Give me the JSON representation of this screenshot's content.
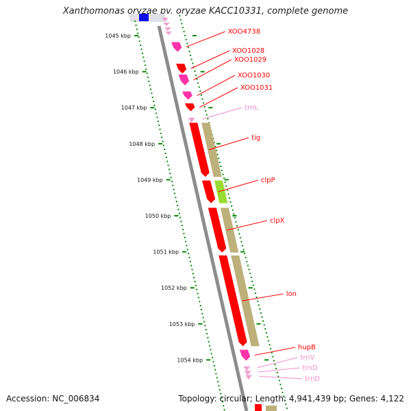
{
  "title": "Xanthomonas oryzae pv. oryzae KACC10331, complete genome",
  "footer": {
    "accession": "Accession: NC_006834",
    "topology": "Topology: circular; Length: 4,941,439 bp; Genes: 4,122"
  },
  "colors": {
    "gene_red": "#ff0000",
    "gene_magenta": "#ff33aa",
    "khaki": "#bdb07a",
    "green": "#99dd33",
    "trna_pink": "#f0a0d0",
    "label_red": "#ff0000",
    "label_pink": "#f08cc8",
    "tick_green": "#008800"
  },
  "scale_ticks": [
    {
      "label": "1045 kbp",
      "pos": 1045
    },
    {
      "label": "1046 kbp",
      "pos": 1046
    },
    {
      "label": "1047 kbp",
      "pos": 1047
    },
    {
      "label": "1048 kbp",
      "pos": 1048
    },
    {
      "label": "1049 kbp",
      "pos": 1049
    },
    {
      "label": "1050 kbp",
      "pos": 1050
    },
    {
      "label": "1051 kbp",
      "pos": 1051
    },
    {
      "label": "1052 kbp",
      "pos": 1052
    },
    {
      "label": "1053 kbp",
      "pos": 1053
    },
    {
      "label": "1054 kbp",
      "pos": 1054
    }
  ],
  "genes": [
    {
      "label": "XOO4738",
      "start": 1045.18,
      "end": 1045.45,
      "type": "cds"
    },
    {
      "label": "XOO1028",
      "start": 1045.78,
      "end": 1046.05,
      "type": "cds"
    },
    {
      "label": "XOO1029",
      "start": 1046.08,
      "end": 1046.38,
      "type": "cds"
    },
    {
      "label": "XOO1030",
      "start": 1046.55,
      "end": 1046.78,
      "type": "cds"
    },
    {
      "label": "XOO1031",
      "start": 1046.88,
      "end": 1047.1,
      "type": "cds"
    },
    {
      "label": "trnL",
      "start": 1047.28,
      "end": 1047.36,
      "type": "trna"
    },
    {
      "label": "tig",
      "start": 1047.42,
      "end": 1048.92,
      "type": "cds"
    },
    {
      "label": "clpP",
      "start": 1049.02,
      "end": 1049.65,
      "type": "cds"
    },
    {
      "label": "clpX",
      "start": 1049.78,
      "end": 1051.02,
      "type": "cds"
    },
    {
      "label": "lon",
      "start": 1051.1,
      "end": 1053.62,
      "type": "cds"
    },
    {
      "label": "hupB",
      "start": 1053.72,
      "end": 1054.02,
      "type": "cds"
    },
    {
      "label": "trnV",
      "start": 1054.18,
      "end": 1054.25,
      "type": "trna"
    },
    {
      "label": "trnD",
      "start": 1054.3,
      "end": 1054.37,
      "type": "trna"
    },
    {
      "label": "trnD",
      "start": 1054.42,
      "end": 1054.49,
      "type": "trna"
    }
  ]
}
